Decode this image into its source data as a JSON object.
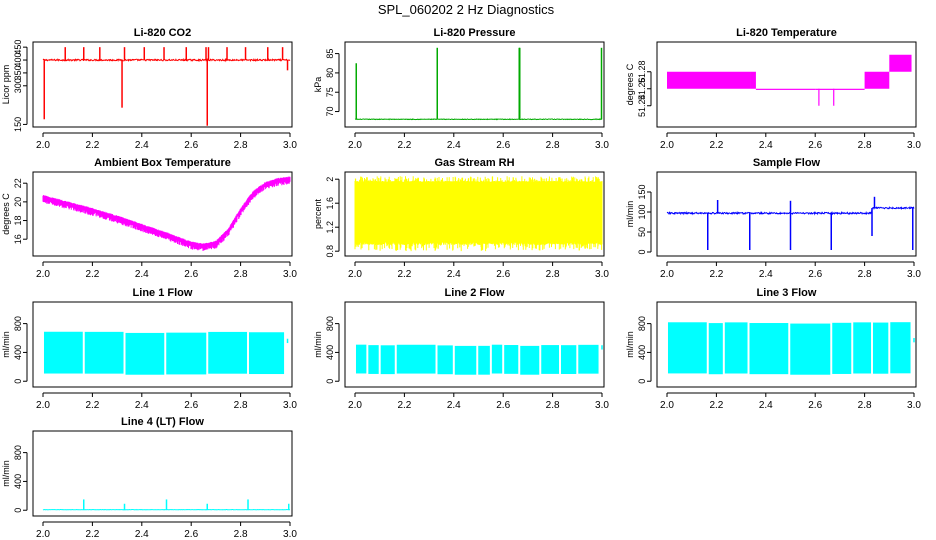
{
  "figure": {
    "title": "SPL_060202  2 Hz Diagnostics"
  },
  "chart_data": [
    {
      "type": "line",
      "title": "Li-820 CO2",
      "ylabel": "Licor ppm",
      "color": "#ff0000",
      "xlim": [
        2.0,
        3.0
      ],
      "ylim": [
        140,
        470
      ],
      "xticks": [
        "2.0",
        "2.2",
        "2.4",
        "2.6",
        "2.8",
        "3.0"
      ],
      "yticks": [
        150,
        300,
        350,
        400,
        450
      ],
      "series": [
        {
          "name": "CO2",
          "kind": "flat-spikes",
          "baseline": 400,
          "noise": 6,
          "spikes_up": [
            [
              2.09,
              450
            ],
            [
              2.165,
              450
            ],
            [
              2.23,
              450
            ],
            [
              2.33,
              450
            ],
            [
              2.41,
              450
            ],
            [
              2.49,
              450
            ],
            [
              2.58,
              450
            ],
            [
              2.66,
              450
            ],
            [
              2.67,
              450
            ],
            [
              2.745,
              450
            ],
            [
              2.82,
              450
            ],
            [
              2.91,
              450
            ],
            [
              2.97,
              450
            ]
          ],
          "spikes_down": [
            [
              2.005,
              170
            ],
            [
              2.32,
              215
            ],
            [
              2.665,
              145
            ],
            [
              2.99,
              360
            ]
          ]
        }
      ]
    },
    {
      "type": "line",
      "title": "Li-820 Pressure",
      "ylabel": "kPa",
      "color": "#00aa00",
      "xlim": [
        2.0,
        3.0
      ],
      "ylim": [
        66,
        88
      ],
      "xticks": [
        "2.0",
        "2.2",
        "2.4",
        "2.6",
        "2.8",
        "3.0"
      ],
      "yticks": [
        70,
        75,
        80,
        85
      ],
      "series": [
        {
          "name": "Pressure",
          "kind": "flat-spikes",
          "baseline": 68.0,
          "noise": 0.15,
          "spikes_up": [
            [
              2.005,
              82.5
            ],
            [
              2.333,
              86.5
            ],
            [
              2.665,
              86.5
            ],
            [
              2.667,
              86.5
            ],
            [
              2.998,
              86.5
            ]
          ],
          "spikes_down": []
        }
      ]
    },
    {
      "type": "line",
      "title": "Li-820 Temperature",
      "ylabel": "degrees C",
      "color": "#ff00ff",
      "xlim": [
        2.0,
        3.0
      ],
      "ylim": [
        51.215,
        51.315
      ],
      "xticks": [
        "2.0",
        "2.2",
        "2.4",
        "2.6",
        "2.8",
        "3.0"
      ],
      "yticks": [
        51.24,
        51.26,
        51.28
      ],
      "series": [
        {
          "name": "Temperature",
          "kind": "step-band",
          "segments": [
            [
              2.0,
              2.34,
              51.26,
              51.28
            ],
            [
              2.34,
              2.36,
              51.26,
              51.28
            ],
            [
              2.36,
              2.6,
              51.26,
              51.26
            ],
            [
              2.6,
              2.8,
              51.26,
              51.26
            ],
            [
              2.8,
              2.9,
              51.26,
              51.28
            ],
            [
              2.9,
              2.99,
              51.28,
              51.3
            ]
          ],
          "dips": [
            [
              2.615,
              51.24
            ],
            [
              2.675,
              51.24
            ]
          ]
        }
      ]
    },
    {
      "type": "line",
      "title": "Ambient Box Temperature",
      "ylabel": "degrees C",
      "color": "#ff00ff",
      "xlim": [
        2.0,
        3.0
      ],
      "ylim": [
        14.2,
        23.2
      ],
      "xticks": [
        "2.0",
        "2.2",
        "2.4",
        "2.6",
        "2.8",
        "3.0"
      ],
      "yticks": [
        16,
        18,
        20,
        22
      ],
      "series": [
        {
          "name": "Box T",
          "kind": "curve",
          "noise": 0.5,
          "x": [
            2.0,
            2.1,
            2.2,
            2.3,
            2.4,
            2.5,
            2.55,
            2.6,
            2.65,
            2.7,
            2.75,
            2.8,
            2.85,
            2.9,
            2.95,
            3.0
          ],
          "y": [
            20.6,
            19.9,
            19.2,
            18.4,
            17.5,
            16.6,
            16.1,
            15.6,
            15.4,
            15.7,
            17.0,
            19.2,
            21.0,
            22.0,
            22.4,
            22.6
          ]
        }
      ]
    },
    {
      "type": "line",
      "title": "Gas Stream RH",
      "ylabel": "percent",
      "color": "#ffff00",
      "xlim": [
        2.0,
        3.0
      ],
      "ylim": [
        0.72,
        2.12
      ],
      "xticks": [
        "2.0",
        "2.2",
        "2.4",
        "2.6",
        "2.8",
        "3.0"
      ],
      "yticks": [
        0.8,
        1.2,
        1.6,
        2.0
      ],
      "series": [
        {
          "name": "RH",
          "kind": "noise-band",
          "low": 0.95,
          "high": 1.95,
          "minlow": 0.8,
          "maxhigh": 2.05
        }
      ]
    },
    {
      "type": "line",
      "title": "Sample Flow",
      "ylabel": "ml/min",
      "color": "#0000ff",
      "xlim": [
        2.0,
        3.0
      ],
      "ylim": [
        -10,
        200
      ],
      "xticks": [
        "2.0",
        "2.2",
        "2.4",
        "2.6",
        "2.8",
        "3.0"
      ],
      "yticks": [
        0,
        50,
        100,
        150
      ],
      "series": [
        {
          "name": "Flow",
          "kind": "flat-spikes",
          "baseline": 97,
          "noise": 4,
          "step": [
            2.83,
            110
          ],
          "spikes_up": [
            [
              2.205,
              130
            ],
            [
              2.5,
              128
            ],
            [
              2.84,
              138
            ]
          ],
          "spikes_down": [
            [
              2.165,
              5
            ],
            [
              2.335,
              5
            ],
            [
              2.5,
              5
            ],
            [
              2.665,
              5
            ],
            [
              2.83,
              40
            ],
            [
              2.995,
              5
            ]
          ]
        }
      ]
    },
    {
      "type": "line",
      "title": "Line 1 Flow",
      "ylabel": "ml/min",
      "color": "#00ffff",
      "xlim": [
        2.0,
        3.0
      ],
      "ylim": [
        -80,
        1100
      ],
      "xticks": [
        "2.0",
        "2.2",
        "2.4",
        "2.6",
        "2.8",
        "3.0"
      ],
      "yticks": [
        0,
        400,
        800
      ],
      "series": [
        {
          "name": "Line 1",
          "kind": "band",
          "low": 100,
          "high": 680,
          "gaps": [
            2.165,
            2.33,
            2.495,
            2.665,
            2.83
          ],
          "end": [
            2.98,
            590
          ]
        }
      ]
    },
    {
      "type": "line",
      "title": "Line 2 Flow",
      "ylabel": "ml/min",
      "color": "#00ffff",
      "xlim": [
        2.0,
        3.0
      ],
      "ylim": [
        -80,
        1100
      ],
      "xticks": [
        "2.0",
        "2.2",
        "2.4",
        "2.6",
        "2.8",
        "3.0"
      ],
      "yticks": [
        0,
        400,
        800
      ],
      "series": [
        {
          "name": "Line 2",
          "kind": "band",
          "low": 100,
          "high": 500,
          "gaps": [
            2.05,
            2.1,
            2.165,
            2.33,
            2.4,
            2.495,
            2.55,
            2.6,
            2.665,
            2.75,
            2.83,
            2.9
          ],
          "end": [
            2.99,
            500
          ]
        }
      ]
    },
    {
      "type": "line",
      "title": "Line 3 Flow",
      "ylabel": "ml/min",
      "color": "#00ffff",
      "xlim": [
        2.0,
        3.0
      ],
      "ylim": [
        -80,
        1100
      ],
      "xticks": [
        "2.0",
        "2.2",
        "2.4",
        "2.6",
        "2.8",
        "3.0"
      ],
      "yticks": [
        0,
        400,
        800
      ],
      "series": [
        {
          "name": "Line 3",
          "kind": "band",
          "low": 100,
          "high": 810,
          "gaps": [
            2.165,
            2.23,
            2.33,
            2.495,
            2.665,
            2.75,
            2.83,
            2.9
          ],
          "end": [
            2.99,
            600
          ]
        }
      ]
    },
    {
      "type": "line",
      "title": "Line 4 (LT) Flow",
      "ylabel": "ml/min",
      "color": "#00ffff",
      "xlim": [
        2.0,
        3.0
      ],
      "ylim": [
        -80,
        1100
      ],
      "xticks": [
        "2.0",
        "2.2",
        "2.4",
        "2.6",
        "2.8",
        "3.0"
      ],
      "yticks": [
        0,
        400,
        800
      ],
      "series": [
        {
          "name": "Line 4",
          "kind": "flat-spikes",
          "baseline": 8,
          "noise": 4,
          "spikes_up": [
            [
              2.165,
              150
            ],
            [
              2.33,
              90
            ],
            [
              2.5,
              150
            ],
            [
              2.665,
              90
            ],
            [
              2.83,
              150
            ],
            [
              2.995,
              90
            ]
          ],
          "spikes_down": []
        }
      ]
    }
  ]
}
